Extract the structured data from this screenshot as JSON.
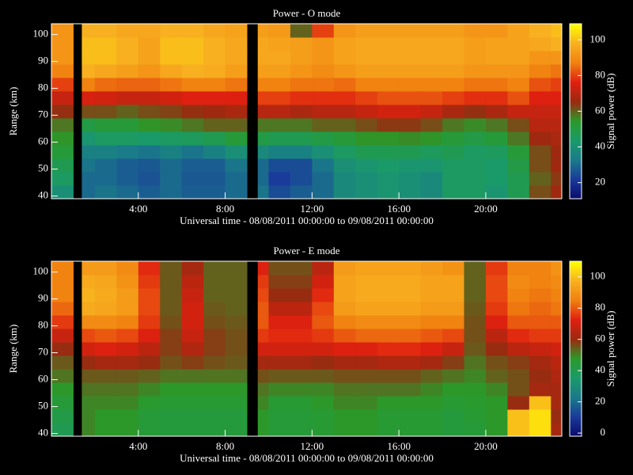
{
  "chart_data": [
    {
      "type": "heatmap",
      "title": "Power - O mode",
      "x_label": "Universal time - 08/08/2011 00:00:00 to 09/08/2011 00:00:00",
      "y_label": "Range (km)",
      "colorbar_label": "Signal power (dB)",
      "xlim": [
        0,
        23.5
      ],
      "ylim": [
        39,
        104
      ],
      "clim": [
        11,
        109
      ],
      "xticks": [
        {
          "value": 4,
          "label": "4:00"
        },
        {
          "value": 8,
          "label": "8:00"
        },
        {
          "value": 12,
          "label": "12:00"
        },
        {
          "value": 16,
          "label": "16:00"
        },
        {
          "value": 20,
          "label": "20:00"
        }
      ],
      "yticks": [
        40,
        50,
        60,
        70,
        80,
        90,
        100
      ],
      "cticks": [
        20,
        40,
        60,
        80,
        100
      ],
      "colormap": [
        "#0a0a6a",
        "#1a3a9a",
        "#1a7a8a",
        "#1a9a6a",
        "#2a9a2a",
        "#9a2a10",
        "#e02010",
        "#f08010",
        "#f8b020",
        "#ffff00"
      ],
      "x_bins": [
        0,
        1,
        1.4,
        2,
        3,
        4,
        5,
        6,
        7,
        8,
        9,
        9.5,
        10,
        11,
        12,
        13,
        14,
        15,
        16,
        17,
        18,
        19,
        20,
        21,
        22,
        23,
        23.5
      ],
      "y_bins": [
        39,
        44,
        49,
        54,
        59,
        64,
        69,
        74,
        79,
        84,
        89,
        94,
        99,
        104
      ],
      "z": [
        [
          40,
          45,
          48,
          52,
          55,
          58,
          65,
          72,
          80,
          88,
          92,
          92,
          92
        ],
        [
          null,
          null,
          null,
          null,
          null,
          null,
          null,
          null,
          null,
          null,
          null,
          null,
          null
        ],
        [
          30,
          30,
          32,
          35,
          42,
          50,
          62,
          75,
          88,
          98,
          100,
          100,
          98
        ],
        [
          32,
          30,
          30,
          35,
          45,
          52,
          62,
          74,
          85,
          96,
          100,
          100,
          98
        ],
        [
          30,
          28,
          28,
          33,
          45,
          52,
          60,
          72,
          84,
          94,
          98,
          98,
          96
        ],
        [
          28,
          26,
          27,
          32,
          44,
          55,
          62,
          72,
          84,
          92,
          95,
          95,
          96
        ],
        [
          30,
          30,
          30,
          35,
          45,
          56,
          63,
          74,
          86,
          96,
          100,
          100,
          98
        ],
        [
          28,
          27,
          28,
          32,
          46,
          58,
          65,
          76,
          88,
          98,
          100,
          100,
          98
        ],
        [
          28,
          27,
          28,
          35,
          48,
          60,
          66,
          76,
          88,
          97,
          98,
          98,
          96
        ],
        [
          30,
          30,
          32,
          40,
          52,
          60,
          68,
          76,
          86,
          94,
          96,
          96,
          95
        ],
        [
          null,
          null,
          null,
          null,
          null,
          null,
          null,
          null,
          null,
          null,
          null,
          null,
          null
        ],
        [
          32,
          30,
          30,
          38,
          50,
          58,
          70,
          80,
          88,
          94,
          96,
          96,
          94
        ],
        [
          25,
          22,
          25,
          35,
          48,
          58,
          70,
          80,
          88,
          94,
          96,
          95,
          93
        ],
        [
          28,
          25,
          25,
          35,
          48,
          58,
          68,
          78,
          86,
          92,
          94,
          94,
          60
        ],
        [
          30,
          30,
          32,
          40,
          50,
          60,
          70,
          78,
          86,
          90,
          92,
          92,
          80
        ],
        [
          38,
          38,
          40,
          45,
          52,
          60,
          70,
          78,
          85,
          92,
          95,
          95,
          92
        ],
        [
          40,
          40,
          42,
          48,
          55,
          62,
          72,
          80,
          88,
          94,
          96,
          96,
          94
        ],
        [
          42,
          42,
          44,
          48,
          55,
          64,
          74,
          82,
          88,
          94,
          96,
          96,
          94
        ],
        [
          40,
          40,
          42,
          48,
          56,
          64,
          74,
          82,
          88,
          94,
          96,
          96,
          94
        ],
        [
          38,
          38,
          42,
          46,
          55,
          62,
          72,
          82,
          88,
          94,
          96,
          96,
          94
        ],
        [
          45,
          45,
          45,
          48,
          52,
          58,
          68,
          80,
          88,
          94,
          96,
          96,
          94
        ],
        [
          45,
          45,
          45,
          45,
          50,
          56,
          65,
          78,
          86,
          92,
          94,
          94,
          92
        ],
        [
          42,
          44,
          44,
          46,
          52,
          58,
          68,
          78,
          86,
          92,
          95,
          95,
          92
        ],
        [
          48,
          48,
          50,
          52,
          58,
          62,
          72,
          82,
          88,
          92,
          95,
          95,
          95
        ],
        [
          62,
          60,
          62,
          62,
          66,
          70,
          72,
          76,
          82,
          88,
          92,
          96,
          98
        ],
        [
          66,
          64,
          66,
          66,
          68,
          70,
          72,
          76,
          80,
          86,
          92,
          98,
          100
        ]
      ]
    },
    {
      "type": "heatmap",
      "title": "Power - E mode",
      "x_label": "Universal time - 08/08/2011 00:00:00 to 09/08/2011 00:00:00",
      "y_label": "Range (km)",
      "colorbar_label": "Signal power (dB)",
      "xlim": [
        0,
        23.5
      ],
      "ylim": [
        39,
        104
      ],
      "clim": [
        -2,
        110
      ],
      "xticks": [
        {
          "value": 4,
          "label": "4:00"
        },
        {
          "value": 8,
          "label": "8:00"
        },
        {
          "value": 12,
          "label": "12:00"
        },
        {
          "value": 16,
          "label": "16:00"
        },
        {
          "value": 20,
          "label": "20:00"
        }
      ],
      "yticks": [
        40,
        50,
        60,
        70,
        80,
        90,
        100
      ],
      "cticks": [
        0,
        20,
        40,
        60,
        80,
        100
      ],
      "colormap": [
        "#0a0a6a",
        "#1a3a9a",
        "#1a7a8a",
        "#1a9a6a",
        "#2a9a2a",
        "#9a2a10",
        "#e02010",
        "#f08010",
        "#f8b020",
        "#ffff00"
      ],
      "x_bins": [
        0,
        1,
        1.4,
        2,
        3,
        4,
        5,
        6,
        7,
        8,
        9,
        9.5,
        10,
        11,
        12,
        13,
        14,
        15,
        16,
        17,
        18,
        19,
        20,
        21,
        22,
        23,
        23.5
      ],
      "y_bins": [
        39,
        44,
        49,
        54,
        59,
        64,
        69,
        74,
        79,
        84,
        89,
        94,
        99,
        104
      ],
      "z": [
        [
          40,
          42,
          45,
          48,
          52,
          55,
          60,
          68,
          76,
          82,
          86,
          86,
          86
        ],
        [
          null,
          null,
          null,
          null,
          null,
          null,
          null,
          null,
          null,
          null,
          null,
          null,
          null
        ],
        [
          50,
          50,
          50,
          52,
          55,
          60,
          70,
          78,
          88,
          96,
          98,
          96,
          92
        ],
        [
          48,
          48,
          50,
          52,
          55,
          62,
          72,
          80,
          88,
          95,
          96,
          95,
          92
        ],
        [
          48,
          48,
          50,
          52,
          55,
          62,
          70,
          78,
          86,
          92,
          92,
          90,
          88
        ],
        [
          45,
          45,
          47,
          50,
          54,
          60,
          66,
          72,
          76,
          78,
          78,
          76,
          74
        ],
        [
          44,
          44,
          46,
          48,
          52,
          56,
          58,
          58,
          56,
          55,
          55,
          55,
          55
        ],
        [
          44,
          44,
          46,
          48,
          52,
          58,
          64,
          68,
          70,
          70,
          68,
          66,
          62
        ],
        [
          44,
          44,
          46,
          48,
          52,
          56,
          58,
          58,
          56,
          55,
          54,
          54,
          54
        ],
        [
          44,
          44,
          46,
          48,
          52,
          55,
          56,
          56,
          55,
          54,
          54,
          54,
          54
        ],
        [
          null,
          null,
          null,
          null,
          null,
          null,
          null,
          null,
          null,
          null,
          null,
          null,
          null
        ],
        [
          48,
          48,
          50,
          52,
          56,
          62,
          70,
          76,
          80,
          80,
          78,
          76,
          72
        ],
        [
          45,
          45,
          46,
          50,
          55,
          62,
          70,
          74,
          72,
          66,
          60,
          58,
          56
        ],
        [
          45,
          45,
          46,
          50,
          55,
          62,
          70,
          74,
          72,
          66,
          60,
          58,
          56
        ],
        [
          46,
          46,
          48,
          50,
          55,
          60,
          70,
          76,
          80,
          78,
          74,
          70,
          66
        ],
        [
          48,
          48,
          50,
          52,
          56,
          62,
          72,
          80,
          86,
          92,
          94,
          94,
          92
        ],
        [
          48,
          48,
          50,
          52,
          56,
          62,
          72,
          82,
          88,
          94,
          96,
          96,
          94
        ],
        [
          46,
          46,
          48,
          52,
          56,
          64,
          74,
          82,
          88,
          94,
          96,
          96,
          94
        ],
        [
          46,
          46,
          48,
          52,
          56,
          64,
          74,
          82,
          88,
          94,
          96,
          96,
          94
        ],
        [
          46,
          46,
          48,
          50,
          54,
          62,
          72,
          80,
          86,
          92,
          94,
          94,
          92
        ],
        [
          44,
          44,
          46,
          48,
          52,
          58,
          68,
          78,
          86,
          92,
          94,
          94,
          90
        ],
        [
          45,
          46,
          47,
          48,
          50,
          52,
          55,
          56,
          56,
          55,
          54,
          54,
          54
        ],
        [
          48,
          48,
          48,
          50,
          54,
          56,
          60,
          66,
          72,
          76,
          78,
          78,
          76
        ],
        [
          100,
          100,
          60,
          56,
          56,
          58,
          66,
          74,
          80,
          84,
          86,
          88,
          86
        ],
        [
          105,
          105,
          100,
          62,
          60,
          62,
          68,
          76,
          80,
          82,
          84,
          86,
          86
        ],
        [
          62,
          60,
          62,
          62,
          64,
          66,
          70,
          76,
          80,
          84,
          86,
          88,
          90
        ]
      ]
    }
  ]
}
